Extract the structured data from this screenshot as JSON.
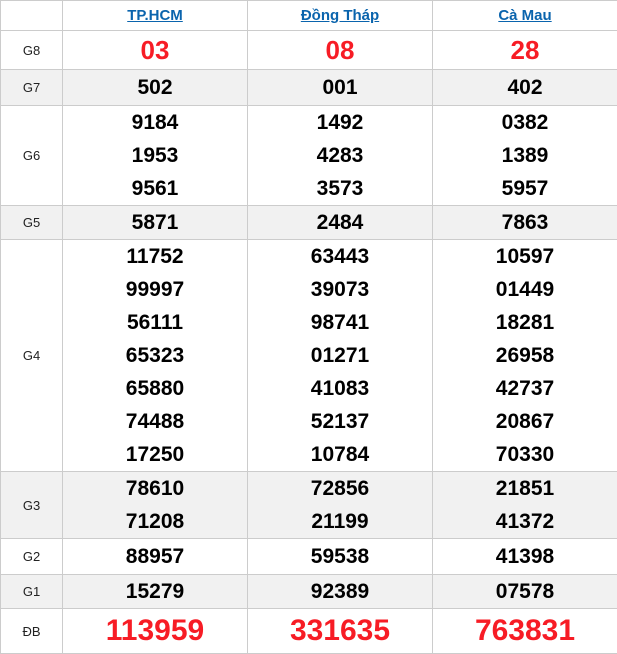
{
  "table": {
    "corner_label": "",
    "columns": [
      {
        "key": "tphcm",
        "label": "TP.HCM"
      },
      {
        "key": "dongthap",
        "label": "Đồng Tháp"
      },
      {
        "key": "camau",
        "label": "Cà Mau"
      }
    ],
    "rows": [
      {
        "key": "g8",
        "label": "G8",
        "emphasis": true,
        "values": [
          [
            "03"
          ],
          [
            "08"
          ],
          [
            "28"
          ]
        ]
      },
      {
        "key": "g7",
        "label": "G7",
        "emphasis": false,
        "values": [
          [
            "502"
          ],
          [
            "001"
          ],
          [
            "402"
          ]
        ]
      },
      {
        "key": "g6",
        "label": "G6",
        "emphasis": false,
        "values": [
          [
            "9184",
            "1953",
            "9561"
          ],
          [
            "1492",
            "4283",
            "3573"
          ],
          [
            "0382",
            "1389",
            "5957"
          ]
        ]
      },
      {
        "key": "g5",
        "label": "G5",
        "emphasis": false,
        "values": [
          [
            "5871"
          ],
          [
            "2484"
          ],
          [
            "7863"
          ]
        ]
      },
      {
        "key": "g4",
        "label": "G4",
        "emphasis": false,
        "values": [
          [
            "11752",
            "99997",
            "56111",
            "65323",
            "65880",
            "74488",
            "17250"
          ],
          [
            "63443",
            "39073",
            "98741",
            "01271",
            "41083",
            "52137",
            "10784"
          ],
          [
            "10597",
            "01449",
            "18281",
            "26958",
            "42737",
            "20867",
            "70330"
          ]
        ]
      },
      {
        "key": "g3",
        "label": "G3",
        "emphasis": false,
        "values": [
          [
            "78610",
            "71208"
          ],
          [
            "72856",
            "21199"
          ],
          [
            "21851",
            "41372"
          ]
        ]
      },
      {
        "key": "g2",
        "label": "G2",
        "emphasis": false,
        "values": [
          [
            "88957"
          ],
          [
            "59538"
          ],
          [
            "41398"
          ]
        ]
      },
      {
        "key": "g1",
        "label": "G1",
        "emphasis": false,
        "values": [
          [
            "15279"
          ],
          [
            "92389"
          ],
          [
            "07578"
          ]
        ]
      },
      {
        "key": "db",
        "label": "ĐB",
        "emphasis": true,
        "values": [
          [
            "113959"
          ],
          [
            "331635"
          ],
          [
            "763831"
          ]
        ]
      }
    ],
    "colors": {
      "highlight_red": "#f71c25",
      "link_blue": "#0a64ad",
      "shaded_row": "#f1f1f1",
      "border": "#cccccc"
    }
  }
}
